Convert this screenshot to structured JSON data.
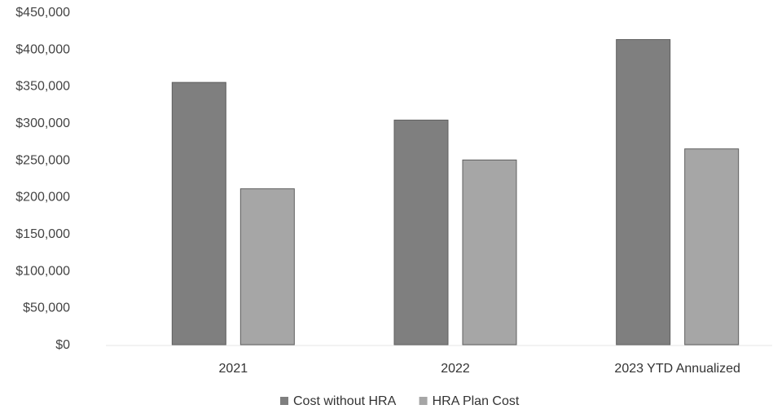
{
  "chart_data": {
    "type": "bar",
    "title": "",
    "xlabel": "",
    "ylabel": "",
    "categories": [
      "2021",
      "2022",
      "2023 YTD Annualized"
    ],
    "series": [
      {
        "name": "Cost without HRA",
        "values": [
          355000,
          304000,
          413000
        ],
        "color": "#7f7f7f"
      },
      {
        "name": "HRA Plan Cost",
        "values": [
          211000,
          250000,
          265000
        ],
        "color": "#a6a6a6"
      }
    ],
    "ylim": [
      0,
      450000
    ],
    "yticks": [
      0,
      50000,
      100000,
      150000,
      200000,
      250000,
      300000,
      350000,
      400000,
      450000
    ],
    "ytick_labels": [
      "$0",
      "$50,000",
      "$100,000",
      "$150,000",
      "$200,000",
      "$250,000",
      "$300,000",
      "$350,000",
      "$400,000",
      "$450,000"
    ],
    "grid": false,
    "legend_position": "bottom"
  }
}
